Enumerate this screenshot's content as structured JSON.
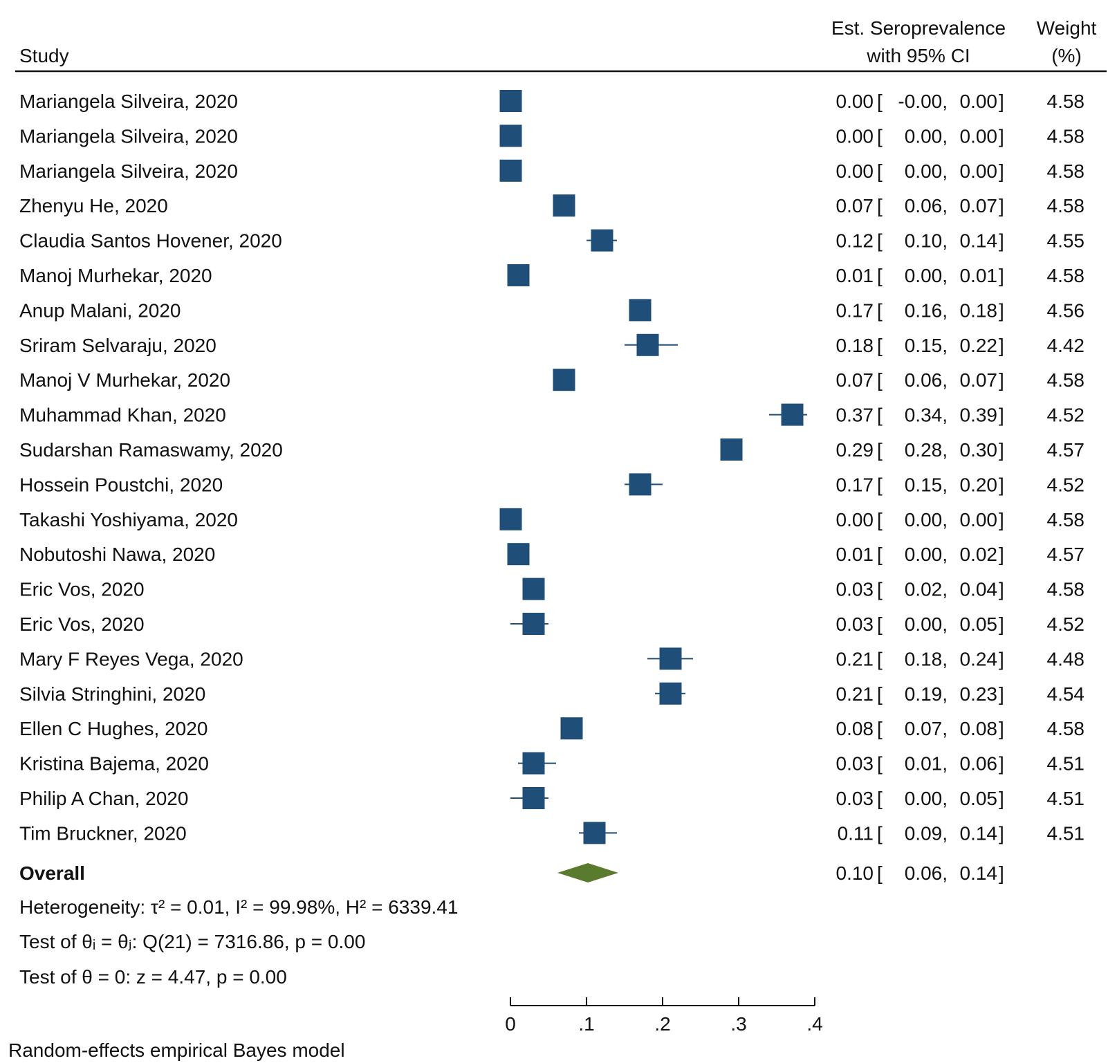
{
  "header": {
    "study": "Study",
    "est_line1": "Est. Seroprevalence",
    "est_line2": "with 95% CI",
    "weight_line1": "Weight",
    "weight_line2": "(%)"
  },
  "chart_data": {
    "type": "forest",
    "xaxis": {
      "ticks": [
        0,
        0.1,
        0.2,
        0.3,
        0.4
      ],
      "tick_labels": [
        "0",
        ".1",
        ".2",
        ".3",
        ".4"
      ],
      "range": [
        0,
        0.4
      ]
    },
    "studies": [
      {
        "label": "Mariangela Silveira, 2020",
        "est": 0.0,
        "lo": -0.0,
        "hi": 0.0,
        "ci_text": "0.00 [  -0.00,  0.00]",
        "weight": "4.58",
        "est_text": "0.00",
        "lo_text": "-0.00",
        "hi_text": "0.00"
      },
      {
        "label": "Mariangela Silveira, 2020",
        "est": 0.0,
        "lo": 0.0,
        "hi": 0.0,
        "est_text": "0.00",
        "lo_text": "0.00",
        "hi_text": "0.00",
        "weight": "4.58"
      },
      {
        "label": "Mariangela Silveira, 2020",
        "est": 0.0,
        "lo": 0.0,
        "hi": 0.0,
        "est_text": "0.00",
        "lo_text": "0.00",
        "hi_text": "0.00",
        "weight": "4.58"
      },
      {
        "label": "Zhenyu He, 2020",
        "est": 0.07,
        "lo": 0.06,
        "hi": 0.07,
        "est_text": "0.07",
        "lo_text": "0.06",
        "hi_text": "0.07",
        "weight": "4.58"
      },
      {
        "label": "Claudia Santos Hovener, 2020",
        "est": 0.12,
        "lo": 0.1,
        "hi": 0.14,
        "est_text": "0.12",
        "lo_text": "0.10",
        "hi_text": "0.14",
        "weight": "4.55"
      },
      {
        "label": "Manoj Murhekar, 2020",
        "est": 0.01,
        "lo": 0.0,
        "hi": 0.01,
        "est_text": "0.01",
        "lo_text": "0.00",
        "hi_text": "0.01",
        "weight": "4.58"
      },
      {
        "label": "Anup Malani, 2020",
        "est": 0.17,
        "lo": 0.16,
        "hi": 0.18,
        "est_text": "0.17",
        "lo_text": "0.16",
        "hi_text": "0.18",
        "weight": "4.56"
      },
      {
        "label": "Sriram Selvaraju, 2020",
        "est": 0.18,
        "lo": 0.15,
        "hi": 0.22,
        "est_text": "0.18",
        "lo_text": "0.15",
        "hi_text": "0.22",
        "weight": "4.42"
      },
      {
        "label": "Manoj V Murhekar, 2020",
        "est": 0.07,
        "lo": 0.06,
        "hi": 0.07,
        "est_text": "0.07",
        "lo_text": "0.06",
        "hi_text": "0.07",
        "weight": "4.58"
      },
      {
        "label": "Muhammad Khan, 2020",
        "est": 0.37,
        "lo": 0.34,
        "hi": 0.39,
        "est_text": "0.37",
        "lo_text": "0.34",
        "hi_text": "0.39",
        "weight": "4.52"
      },
      {
        "label": "Sudarshan Ramaswamy, 2020",
        "est": 0.29,
        "lo": 0.28,
        "hi": 0.3,
        "est_text": "0.29",
        "lo_text": "0.28",
        "hi_text": "0.30",
        "weight": "4.57"
      },
      {
        "label": "Hossein Poustchi, 2020",
        "est": 0.17,
        "lo": 0.15,
        "hi": 0.2,
        "est_text": "0.17",
        "lo_text": "0.15",
        "hi_text": "0.20",
        "weight": "4.52"
      },
      {
        "label": "Takashi Yoshiyama, 2020",
        "est": 0.0,
        "lo": 0.0,
        "hi": 0.0,
        "est_text": "0.00",
        "lo_text": "0.00",
        "hi_text": "0.00",
        "weight": "4.58"
      },
      {
        "label": "Nobutoshi Nawa, 2020",
        "est": 0.01,
        "lo": 0.0,
        "hi": 0.02,
        "est_text": "0.01",
        "lo_text": "0.00",
        "hi_text": "0.02",
        "weight": "4.57"
      },
      {
        "label": "Eric Vos, 2020",
        "est": 0.03,
        "lo": 0.02,
        "hi": 0.04,
        "est_text": "0.03",
        "lo_text": "0.02",
        "hi_text": "0.04",
        "weight": "4.58"
      },
      {
        "label": "Eric Vos, 2020",
        "est": 0.03,
        "lo": 0.0,
        "hi": 0.05,
        "est_text": "0.03",
        "lo_text": "0.00",
        "hi_text": "0.05",
        "weight": "4.52"
      },
      {
        "label": "Mary F Reyes Vega, 2020",
        "est": 0.21,
        "lo": 0.18,
        "hi": 0.24,
        "est_text": "0.21",
        "lo_text": "0.18",
        "hi_text": "0.24",
        "weight": "4.48"
      },
      {
        "label": "Silvia Stringhini, 2020",
        "est": 0.21,
        "lo": 0.19,
        "hi": 0.23,
        "est_text": "0.21",
        "lo_text": "0.19",
        "hi_text": "0.23",
        "weight": "4.54"
      },
      {
        "label": "Ellen C Hughes, 2020",
        "est": 0.08,
        "lo": 0.07,
        "hi": 0.08,
        "est_text": "0.08",
        "lo_text": "0.07",
        "hi_text": "0.08",
        "weight": "4.58"
      },
      {
        "label": "Kristina Bajema, 2020",
        "est": 0.03,
        "lo": 0.01,
        "hi": 0.06,
        "est_text": "0.03",
        "lo_text": "0.01",
        "hi_text": "0.06",
        "weight": "4.51"
      },
      {
        "label": "Philip A Chan, 2020",
        "est": 0.03,
        "lo": 0.0,
        "hi": 0.05,
        "est_text": "0.03",
        "lo_text": "0.00",
        "hi_text": "0.05",
        "weight": "4.51"
      },
      {
        "label": "Tim Bruckner, 2020",
        "est": 0.11,
        "lo": 0.09,
        "hi": 0.14,
        "est_text": "0.11",
        "lo_text": "0.09",
        "hi_text": "0.14",
        "weight": "4.51"
      }
    ],
    "overall": {
      "label": "Overall",
      "est": 0.1,
      "lo": 0.06,
      "hi": 0.14,
      "est_text": "0.10",
      "lo_text": "0.06",
      "hi_text": "0.14"
    },
    "colors": {
      "study_marker": "#1f4e79",
      "overall_diamond": "#5a7a2e",
      "text": "#111111"
    }
  },
  "stats": {
    "heterogeneity": "Heterogeneity: τ² = 0.01, I² = 99.98%, H² = 6339.41",
    "test_theta_ij": "Test of θᵢ = θⱼ: Q(21) = 7316.86, p = 0.00",
    "test_theta_0": "Test of θ = 0: z = 4.47, p = 0.00"
  },
  "footnote": "Random-effects empirical Bayes model"
}
